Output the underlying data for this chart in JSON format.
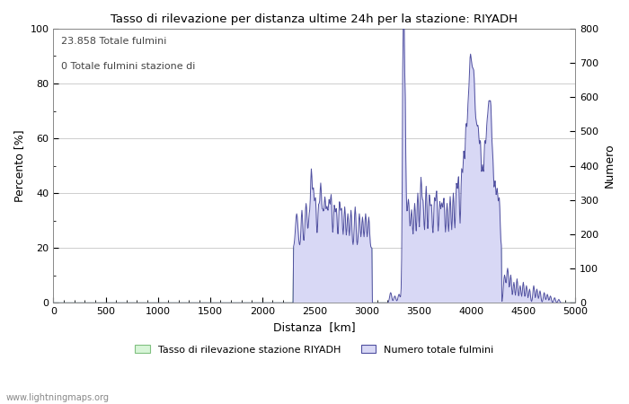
{
  "title": "Tasso di rilevazione per distanza ultime 24h per la stazione: RIYADH",
  "xlabel": "Distanza  [km]",
  "ylabel_left": "Percento [%]",
  "ylabel_right": "Numero",
  "annotation_line1": "23.858 Totale fulmini",
  "annotation_line2": "0 Totale fulmini stazione di",
  "xlim": [
    0,
    5000
  ],
  "ylim_left": [
    0,
    100
  ],
  "ylim_right": [
    0,
    800
  ],
  "xticks": [
    0,
    500,
    1000,
    1500,
    2000,
    2500,
    3000,
    3500,
    4000,
    4500,
    5000
  ],
  "yticks_left": [
    0,
    20,
    40,
    60,
    80,
    100
  ],
  "yticks_right": [
    0,
    100,
    200,
    300,
    400,
    500,
    600,
    700,
    800
  ],
  "legend_label_green": "Tasso di rilevazione stazione RIYADH",
  "legend_label_blue": "Numero totale fulmini",
  "watermark": "www.lightningmaps.org",
  "fill_green_color": "#d8f5d8",
  "fill_blue_color": "#d8d8f5",
  "line_green_color": "#80c080",
  "line_blue_color": "#5050a0",
  "background_color": "#ffffff",
  "grid_color": "#bbbbbb"
}
